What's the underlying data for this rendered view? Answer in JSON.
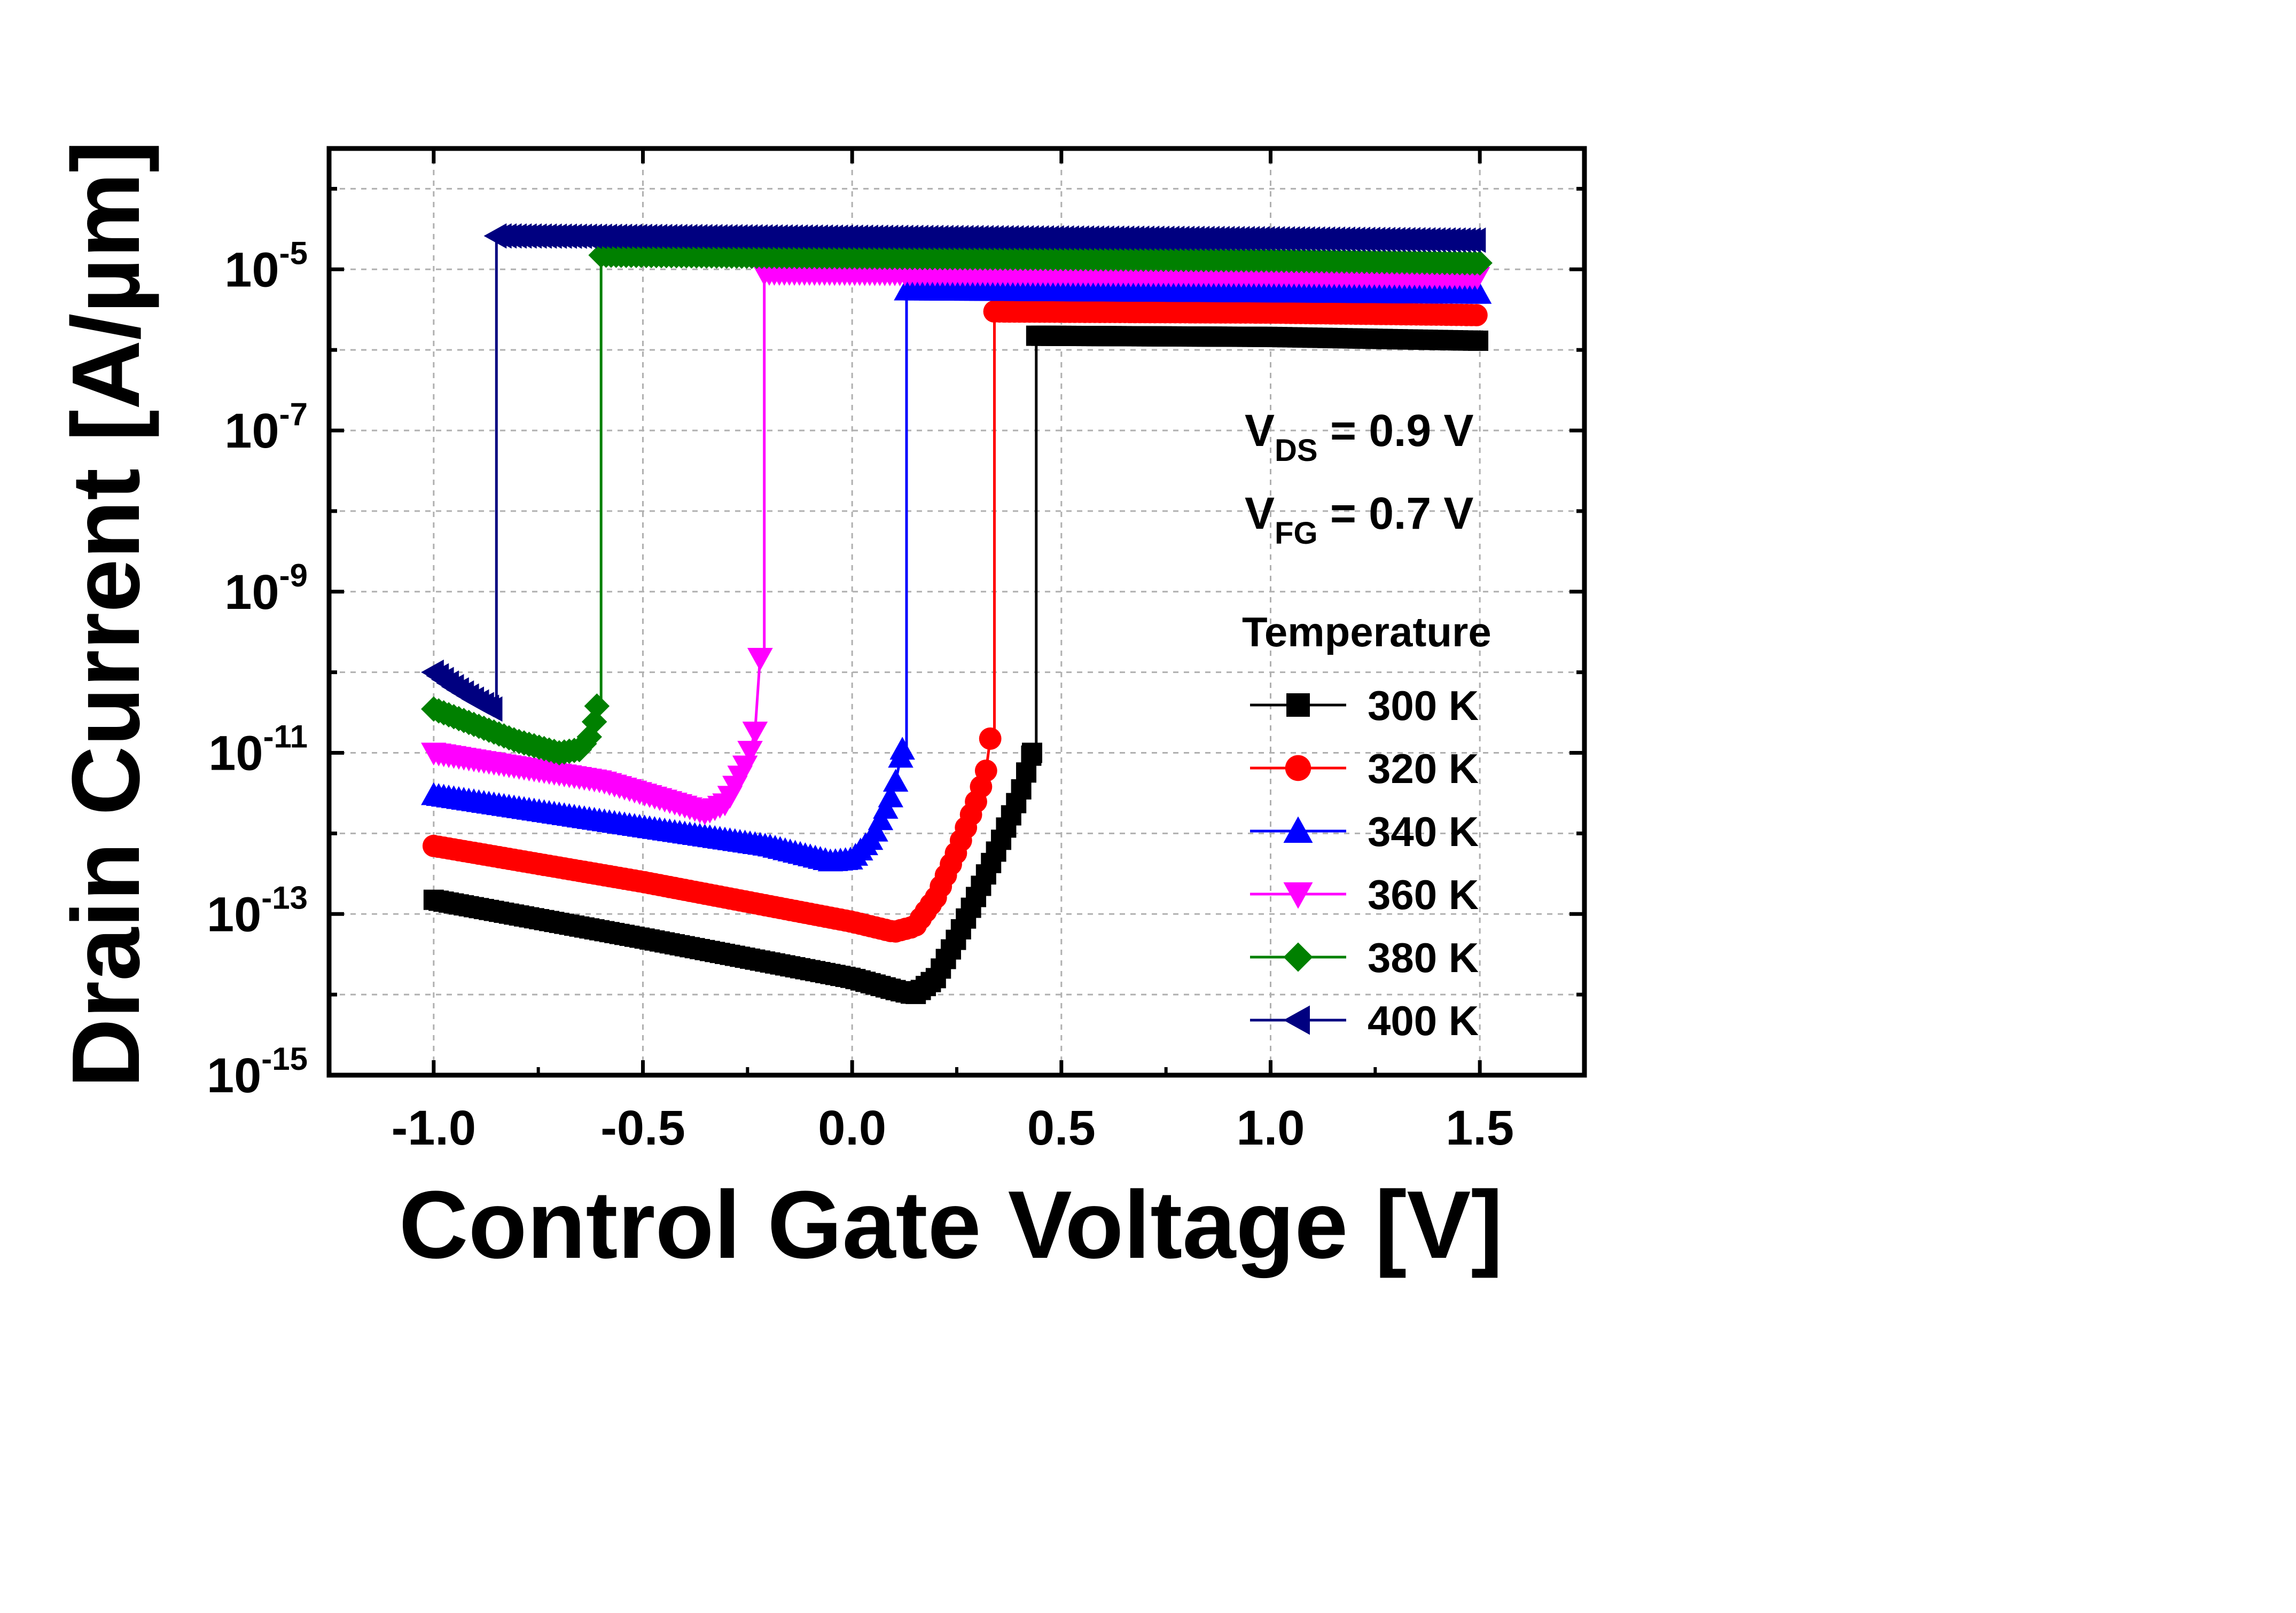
{
  "chart_data": {
    "type": "line",
    "yscale": "log",
    "xlabel": "Control Gate Voltage [V]",
    "ylabel": "Drain Current [A/µm]",
    "xlim": [
      -1.25,
      1.75
    ],
    "ylim_exponent": [
      -15,
      -3.5
    ],
    "grid": true,
    "x_ticks": [
      -1.0,
      -0.5,
      0.0,
      0.5,
      1.0,
      1.5
    ],
    "x_tick_labels": [
      "-1.0",
      "-0.5",
      "0.0",
      "0.5",
      "1.0",
      "1.5"
    ],
    "y_ticks": [
      {
        "base": "10",
        "exp": "-5",
        "value": 1e-05
      },
      {
        "base": "10",
        "exp": "-7",
        "value": 1e-07
      },
      {
        "base": "10",
        "exp": "-9",
        "value": 1e-09
      },
      {
        "base": "10",
        "exp": "-11",
        "value": 1e-11
      },
      {
        "base": "10",
        "exp": "-13",
        "value": 1e-13
      },
      {
        "base": "10",
        "exp": "-15",
        "value": 1e-15
      }
    ],
    "annotations": [
      {
        "main": "V",
        "sub": "DS",
        "rest": " = 0.9 V"
      },
      {
        "main": "V",
        "sub": "FG",
        "rest": " = 0.7 V"
      }
    ],
    "legend_title": "Temperature",
    "legend_position": "right",
    "series": [
      {
        "name": "300 K",
        "color": "#000000",
        "marker": "square",
        "off": [
          [
            -1.0,
            1.5e-13
          ],
          [
            -0.5,
            5e-14
          ],
          [
            0.0,
            1.6e-14
          ],
          [
            0.1,
            1.15e-14
          ],
          [
            0.15,
            1e-14
          ],
          [
            0.2,
            1.6e-14
          ],
          [
            0.25,
            5e-14
          ],
          [
            0.3,
            1.8e-13
          ],
          [
            0.35,
            7e-13
          ],
          [
            0.4,
            3e-12
          ],
          [
            0.43,
            1e-11
          ]
        ],
        "switch_x": 0.44,
        "on": [
          [
            0.44,
            1.5e-06
          ],
          [
            1.0,
            1.45e-06
          ],
          [
            1.5,
            1.3e-06
          ]
        ]
      },
      {
        "name": "320 K",
        "color": "#ff0000",
        "marker": "circle",
        "off": [
          [
            -1.0,
            7e-13
          ],
          [
            -0.5,
            2.5e-13
          ],
          [
            0.0,
            8e-14
          ],
          [
            0.1,
            6e-14
          ],
          [
            0.15,
            7e-14
          ],
          [
            0.2,
            1.6e-13
          ],
          [
            0.25,
            6e-13
          ],
          [
            0.3,
            2.8e-12
          ],
          [
            0.32,
            6e-12
          ],
          [
            0.33,
            1.5e-11
          ]
        ],
        "switch_x": 0.34,
        "on": [
          [
            0.34,
            3e-06
          ],
          [
            1.0,
            2.9e-06
          ],
          [
            1.5,
            2.7e-06
          ]
        ]
      },
      {
        "name": "340 K",
        "color": "#0000ff",
        "marker": "triangle-up",
        "off": [
          [
            -1.0,
            3e-12
          ],
          [
            -0.5,
            1.2e-12
          ],
          [
            -0.2,
            7e-13
          ],
          [
            -0.05,
            4.5e-13
          ],
          [
            0.0,
            4.8e-13
          ],
          [
            0.05,
            9e-13
          ],
          [
            0.1,
            3.5e-12
          ],
          [
            0.12,
            1.1e-11
          ]
        ],
        "switch_x": 0.13,
        "on": [
          [
            0.13,
            5.5e-06
          ],
          [
            1.0,
            5.2e-06
          ],
          [
            1.5,
            5e-06
          ]
        ]
      },
      {
        "name": "360 K",
        "color": "#ff00ff",
        "marker": "triangle-down",
        "off": [
          [
            -1.0,
            1e-11
          ],
          [
            -0.6,
            4.5e-12
          ],
          [
            -0.4,
            2.2e-12
          ],
          [
            -0.35,
            1.8e-12
          ],
          [
            -0.3,
            2.4e-12
          ],
          [
            -0.25,
            8e-12
          ],
          [
            -0.23,
            2e-11
          ],
          [
            -0.22,
            1.5e-10
          ]
        ],
        "switch_x": -0.21,
        "on": [
          [
            -0.21,
            9e-06
          ],
          [
            1.0,
            8.5e-06
          ],
          [
            1.5,
            8e-06
          ]
        ]
      },
      {
        "name": "380 K",
        "color": "#008000",
        "marker": "diamond",
        "off": [
          [
            -1.0,
            3.5e-11
          ],
          [
            -0.8,
            1.4e-11
          ],
          [
            -0.7,
            1e-11
          ],
          [
            -0.65,
            1.1e-11
          ],
          [
            -0.62,
            1.8e-11
          ],
          [
            -0.61,
            3.8e-11
          ]
        ],
        "switch_x": -0.6,
        "on": [
          [
            -0.6,
            1.5e-05
          ],
          [
            1.0,
            1.3e-05
          ],
          [
            1.5,
            1.2e-05
          ]
        ]
      },
      {
        "name": "400 K",
        "color": "#000080",
        "marker": "triangle-left",
        "off": [
          [
            -1.0,
            1e-10
          ],
          [
            -0.95,
            6.5e-11
          ],
          [
            -0.9,
            4.5e-11
          ],
          [
            -0.86,
            3.5e-11
          ]
        ],
        "switch_x": -0.85,
        "on": [
          [
            -0.85,
            2.6e-05
          ],
          [
            1.0,
            2.4e-05
          ],
          [
            1.5,
            2.3e-05
          ]
        ]
      }
    ]
  }
}
